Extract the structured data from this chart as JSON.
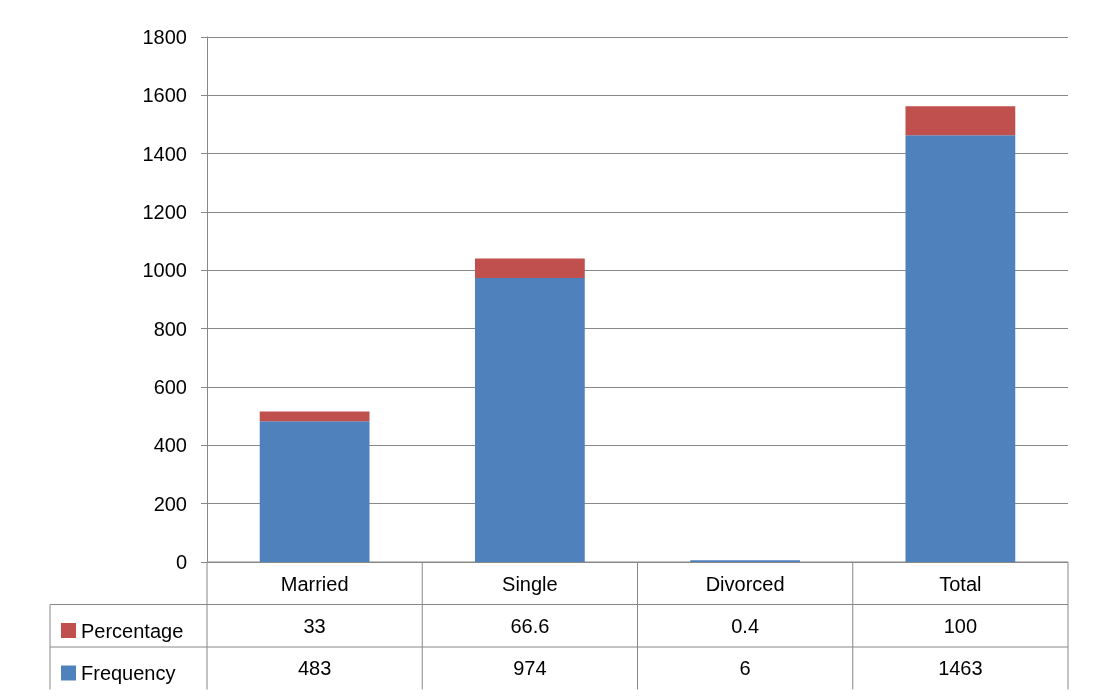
{
  "chart_data": {
    "type": "bar",
    "stacked": true,
    "categories": [
      "Married",
      "Single",
      "Divorced",
      "Total"
    ],
    "series": [
      {
        "name": "Frequency",
        "color": "#4f81bd",
        "values": [
          483,
          974,
          6,
          1463
        ]
      },
      {
        "name": "Percentage",
        "color": "#c0504d",
        "values": [
          33,
          66.6,
          0.4,
          100
        ]
      }
    ],
    "ylim": [
      0,
      1800
    ],
    "yticks": [
      0,
      200,
      400,
      600,
      800,
      1000,
      1200,
      1400,
      1600,
      1800
    ],
    "grid": "y",
    "legend": "bottom left",
    "data_labels": true
  }
}
